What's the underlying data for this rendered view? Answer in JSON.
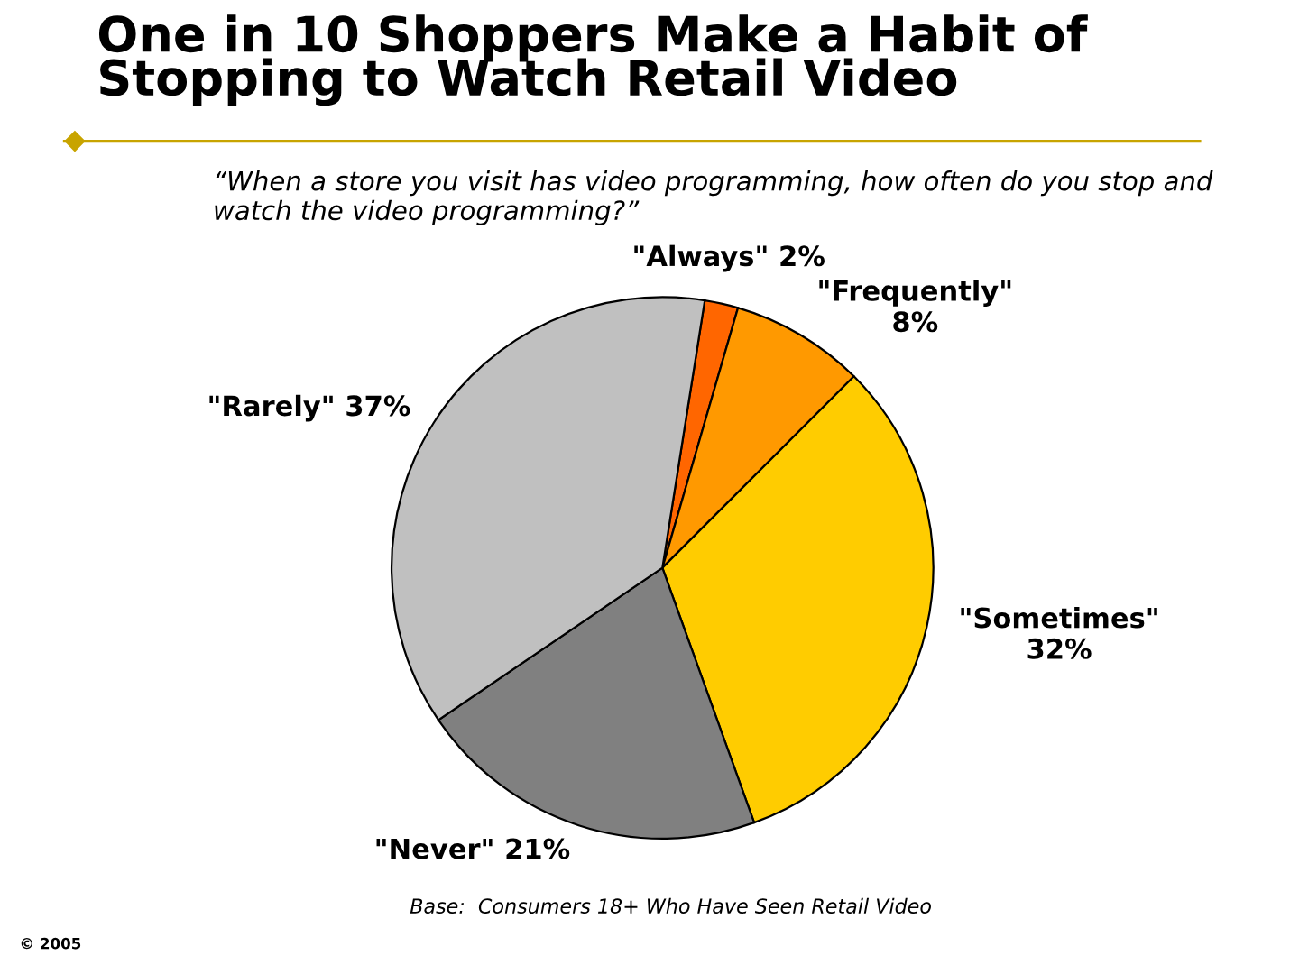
{
  "chart_data": {
    "type": "pie",
    "title": "One in 10 Shoppers Make a Habit of Stopping to Watch Retail Video",
    "subtitle": "“When a store you visit has video programming, how often do you stop and watch the video programming?”",
    "categories": [
      "\"Always\"",
      "\"Frequently\"",
      "\"Sometimes\"",
      "\"Never\"",
      "\"Rarely\""
    ],
    "values": [
      2,
      8,
      32,
      21,
      37
    ],
    "value_labels": [
      "2%",
      "8%",
      "32%",
      "21%",
      "37%"
    ],
    "colors": [
      "#ff6600",
      "#ff9900",
      "#ffcc00",
      "#808080",
      "#c0c0c0"
    ],
    "annotations": [
      "Base:  Consumers 18+ Who Have Seen Retail Video",
      "© 2005"
    ]
  }
}
